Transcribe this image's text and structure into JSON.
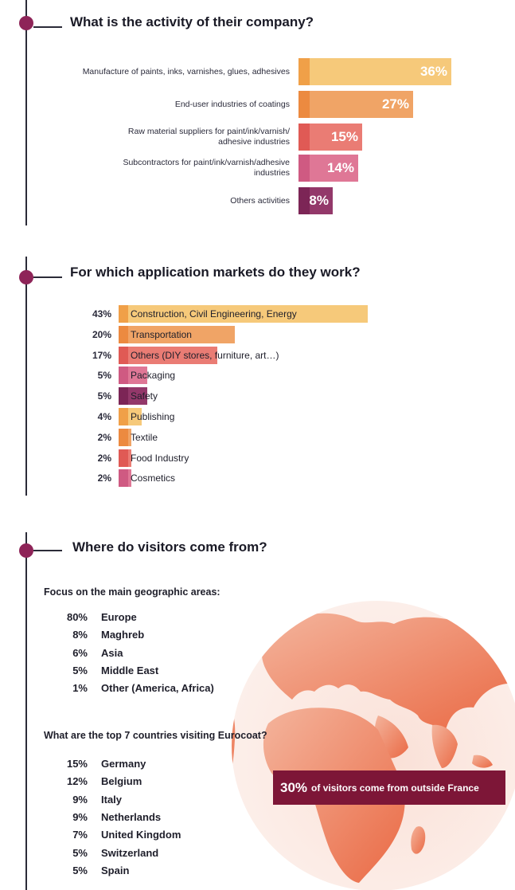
{
  "sections": [
    {
      "title": "What is the activity of their company?"
    },
    {
      "title": "For which application markets do they work?"
    },
    {
      "title": "Where do visitors come from?"
    }
  ],
  "chart_data": [
    {
      "type": "bar",
      "title": "What is the activity of their company?",
      "categories": [
        "Manufacture of paints, inks, varnishes, glues, adhesives",
        "End-user industries of coatings",
        "Raw material suppliers for paint/ink/varnish/ adhesive industries",
        "Subcontractors for  paint/ink/varnish/adhesive industries",
        "Others activities"
      ],
      "values": [
        36,
        27,
        15,
        14,
        8
      ],
      "value_labels": [
        "36%",
        "27%",
        "15%",
        "14%",
        "8%"
      ],
      "colors": [
        "#f6c97a",
        "#f0a466",
        "#ea7c74",
        "#df7796",
        "#93386a"
      ],
      "accent_colors": [
        "#f0a048",
        "#ec8a40",
        "#e05a55",
        "#cf5a82",
        "#7c2556"
      ]
    },
    {
      "type": "bar",
      "title": "For which application markets do they work?",
      "categories": [
        "Construction, Civil Engineering, Energy",
        "Transportation",
        "Others (DIY stores, furniture, art…)",
        "Packaging",
        "Safety",
        "Publishing",
        "Textile",
        "Food Industry",
        "Cosmetics"
      ],
      "values": [
        43,
        20,
        17,
        5,
        5,
        4,
        2,
        2,
        2
      ],
      "value_labels": [
        "43%",
        "20%",
        "17%",
        "5%",
        "5%",
        "4%",
        "2%",
        "2%",
        "2%"
      ],
      "colors": [
        "#f6c97a",
        "#f0a466",
        "#ea7c74",
        "#df7796",
        "#93386a",
        "#f6c97a",
        "#f0a466",
        "#ea7c74",
        "#df7796"
      ],
      "accent_colors": [
        "#f0a048",
        "#ec8a40",
        "#e05a55",
        "#cf5a82",
        "#7c2556",
        "#f0a048",
        "#ec8a40",
        "#e05a55",
        "#cf5a82"
      ]
    },
    {
      "type": "table",
      "title": "Focus on the main geographic areas:",
      "categories": [
        "Europe",
        "Maghreb",
        "Asia",
        "Middle East",
        "Other (America, Africa)"
      ],
      "values": [
        80,
        8,
        6,
        5,
        1
      ],
      "value_labels": [
        "80%",
        "8%",
        "6%",
        "5%",
        "1%"
      ]
    },
    {
      "type": "table",
      "title": "What are the top 7 countries visiting Eurocoat?",
      "categories": [
        "Germany",
        "Belgium",
        "Italy",
        "Netherlands",
        "United Kingdom",
        "Switzerland",
        "Spain"
      ],
      "values": [
        15,
        12,
        9,
        9,
        7,
        5,
        5
      ],
      "value_labels": [
        "15%",
        "12%",
        "9%",
        "9%",
        "7%",
        "5%",
        "5%"
      ]
    }
  ],
  "banner": {
    "big": "30%",
    "text": "of visitors come from outside France"
  },
  "globe_color": "#ee8a6c",
  "accent": "#8e2458"
}
